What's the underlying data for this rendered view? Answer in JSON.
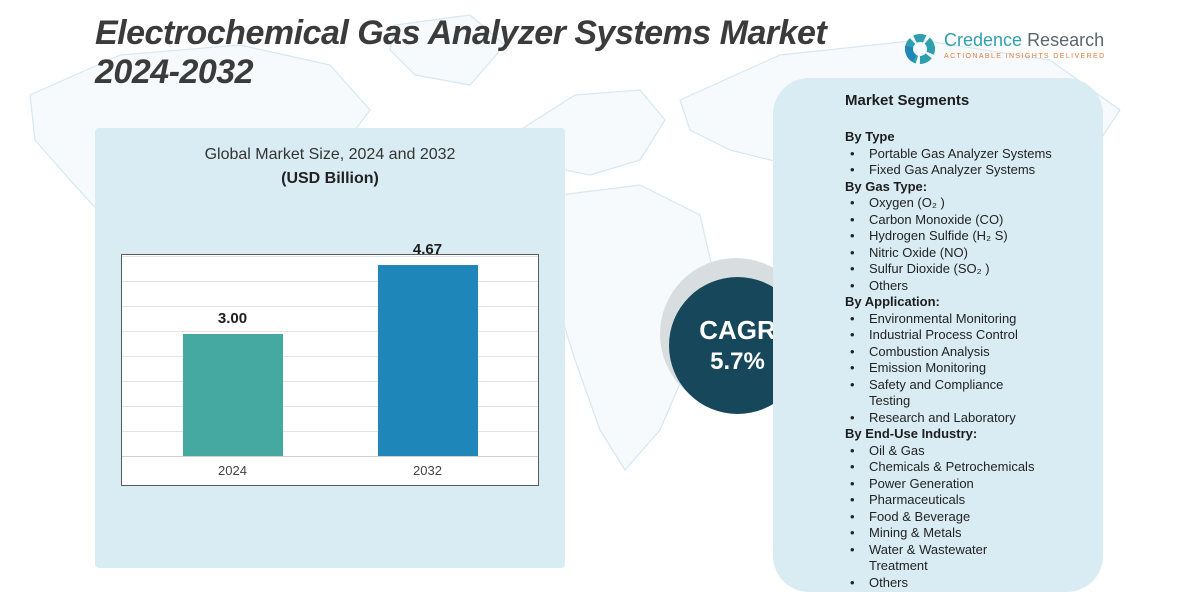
{
  "page": {
    "title_line1": "Electrochemical Gas Analyzer Systems Market",
    "title_line2": "2024-2032"
  },
  "logo": {
    "name_primary": "Credence",
    "name_secondary": "Research",
    "tagline": "Actionable Insights Delivered"
  },
  "chart_data": {
    "type": "bar",
    "title": "Global Market Size, 2024 and 2032",
    "subtitle": "(USD Billion)",
    "categories": [
      "2024",
      "2032"
    ],
    "values": [
      3.0,
      4.67
    ],
    "value_labels": [
      "3.00",
      "4.67"
    ],
    "ylabel": "USD Billion",
    "ylim": [
      0,
      5
    ],
    "grid": true,
    "legend": "none",
    "bar_colors": [
      "#45a8a1",
      "#1e86b8"
    ]
  },
  "cagr": {
    "label": "CAGR",
    "value": "5.7%"
  },
  "segments": {
    "title": "Market Segments",
    "groups": [
      {
        "header": "By Type",
        "items": [
          "Portable Gas Analyzer Systems",
          "Fixed Gas Analyzer Systems"
        ]
      },
      {
        "header": "By Gas Type:",
        "items": [
          "Oxygen (O₂ )",
          "Carbon Monoxide (CO)",
          "Hydrogen Sulfide (H₂ S)",
          "Nitric Oxide (NO)",
          "Sulfur Dioxide (SO₂ )",
          "Others"
        ]
      },
      {
        "header": "By Application:",
        "items": [
          "Environmental Monitoring",
          "Industrial Process Control",
          "Combustion Analysis",
          "Emission Monitoring",
          "Safety and Compliance\nTesting",
          "Research and Laboratory"
        ]
      },
      {
        "header": "By End-Use Industry:",
        "items": [
          "Oil & Gas",
          "Chemicals & Petrochemicals",
          "Power Generation",
          "Pharmaceuticals",
          "Food & Beverage",
          "Mining & Metals",
          "Water & Wastewater\nTreatment",
          "Others"
        ]
      }
    ]
  },
  "colors": {
    "panel_bg": "#d9ecf4",
    "bar_2024": "#45a8a1",
    "bar_2032": "#1e86b8",
    "cagr_circle": "#17475a",
    "accent_teal": "#2f9fae"
  }
}
